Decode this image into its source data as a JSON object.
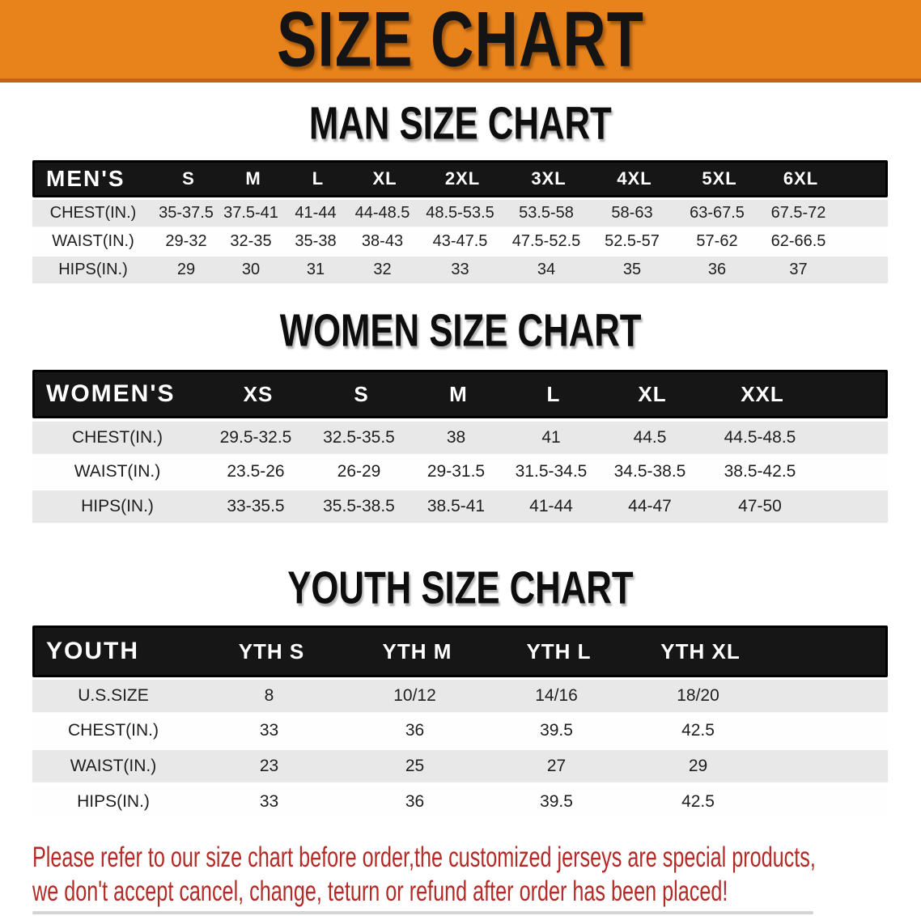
{
  "banner": {
    "title": "SIZE CHART"
  },
  "colors": {
    "banner_orange": "#E8821B",
    "banner_border": "#C06712",
    "header_band_black": "#161616",
    "row_gray": "#E8E8E8",
    "disclaimer_red": "#B32B26"
  },
  "sections": [
    {
      "heading": "MAN SIZE CHART",
      "table": {
        "header": [
          "MEN'S",
          "S",
          "M",
          "L",
          "XL",
          "2XL",
          "3XL",
          "4XL",
          "5XL",
          "6XL"
        ],
        "rows": [
          {
            "label": "CHEST(IN.)",
            "values": [
              "35-37.5",
              "37.5-41",
              "41-44",
              "44-48.5",
              "48.5-53.5",
              "53.5-58",
              "58-63",
              "63-67.5",
              "67.5-72"
            ]
          },
          {
            "label": "WAIST(IN.)",
            "values": [
              "29-32",
              "32-35",
              "35-38",
              "38-43",
              "43-47.5",
              "47.5-52.5",
              "52.5-57",
              "57-62",
              "62-66.5"
            ]
          },
          {
            "label": "HIPS(IN.)",
            "values": [
              "29",
              "30",
              "31",
              "32",
              "33",
              "34",
              "35",
              "36",
              "37"
            ]
          }
        ]
      }
    },
    {
      "heading": "WOMEN SIZE CHART",
      "table": {
        "header": [
          "WOMEN'S",
          "XS",
          "S",
          "M",
          "L",
          "XL",
          "XXL"
        ],
        "rows": [
          {
            "label": "CHEST(IN.)",
            "values": [
              "29.5-32.5",
              "32.5-35.5",
              "38",
              "41",
              "44.5",
              "44.5-48.5"
            ]
          },
          {
            "label": "WAIST(IN.)",
            "values": [
              "23.5-26",
              "26-29",
              "29-31.5",
              "31.5-34.5",
              "34.5-38.5",
              "38.5-42.5"
            ]
          },
          {
            "label": "HIPS(IN.)",
            "values": [
              "33-35.5",
              "35.5-38.5",
              "38.5-41",
              "41-44",
              "44-47",
              "47-50"
            ]
          }
        ]
      }
    },
    {
      "heading": "YOUTH SIZE CHART",
      "table": {
        "header": [
          "YOUTH",
          "YTH S",
          "YTH M",
          "YTH L",
          "YTH XL"
        ],
        "rows": [
          {
            "label": "U.S.SIZE",
            "values": [
              "8",
              "10/12",
              "14/16",
              "18/20"
            ]
          },
          {
            "label": "CHEST(IN.)",
            "values": [
              "33",
              "36",
              "39.5",
              "42.5"
            ]
          },
          {
            "label": "WAIST(IN.)",
            "values": [
              "23",
              "25",
              "27",
              "29"
            ]
          },
          {
            "label": "HIPS(IN.)",
            "values": [
              "33",
              "36",
              "39.5",
              "42.5"
            ]
          }
        ]
      }
    }
  ],
  "disclaimer": {
    "line1": "Please refer to our size chart before order,the customized jerseys are special products,",
    "line2": "we don't accept cancel, change, teturn or refund after order has been placed!"
  }
}
